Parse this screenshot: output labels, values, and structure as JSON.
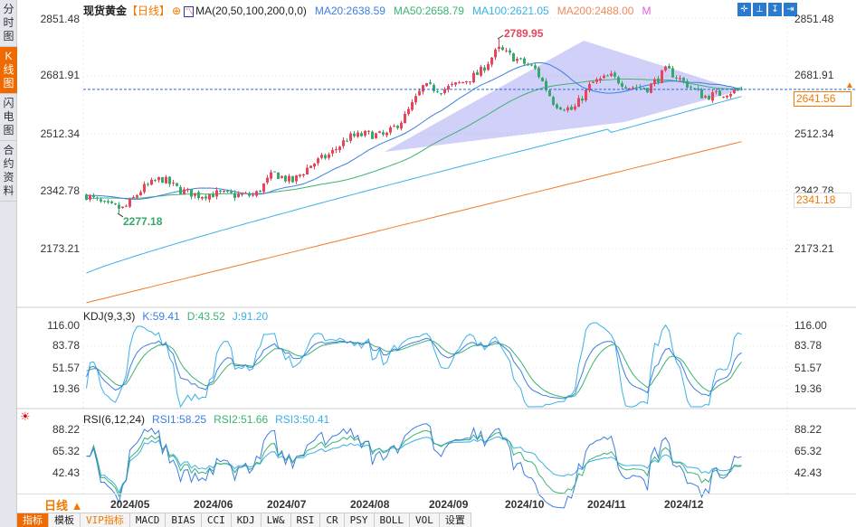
{
  "sidebar": {
    "items": [
      {
        "label": "分时图",
        "active": false
      },
      {
        "label": "K线图",
        "active": true
      },
      {
        "label": "闪电图",
        "active": false
      },
      {
        "label": "合约资料",
        "active": false
      }
    ]
  },
  "header": {
    "symbol": "现货黄金",
    "period": "【日线】",
    "ma_label": "MA(20,50,100,200,0,0)",
    "ma20": "MA20:2638.59",
    "ma50": "MA50:2658.79",
    "ma100": "MA100:2621.05",
    "ma200": "MA200:2488.00",
    "more": "M",
    "tools": [
      "crosshair-icon",
      "range-icon",
      "zoom-icon",
      "exit-icon"
    ]
  },
  "colors": {
    "up": "#e8455a",
    "down": "#35a86a",
    "ma20": "#3d7fe0",
    "ma50": "#3cb371",
    "ma100": "#3bb1e6",
    "ma200": "#f07a2a",
    "accent": "#f06a00"
  },
  "price_axis": {
    "ticks": [
      "2851.48",
      "2681.91",
      "2512.34",
      "2342.78",
      "2173.21"
    ],
    "current": "2641.56",
    "low_marker": "2341.18",
    "max_label": "2789.95",
    "min_label": "2277.18"
  },
  "kdj": {
    "title": "KDJ(9,3,3)",
    "k": "K:59.41",
    "d": "D:43.52",
    "j": "J:91.20",
    "ticks": [
      "116.00",
      "83.78",
      "51.57",
      "19.36"
    ]
  },
  "rsi": {
    "title": "RSI(6,12,24)",
    "r1": "RSI1:58.25",
    "r2": "RSI2:51.66",
    "r3": "RSI3:50.41",
    "ticks": [
      "88.22",
      "65.32",
      "42.43"
    ]
  },
  "period_button": "日线 ▲",
  "dates": [
    "2024/05",
    "2024/06",
    "2024/07",
    "2024/08",
    "2024/09",
    "2024/10",
    "2024/11",
    "2024/12"
  ],
  "tabs": [
    "指标",
    "模板",
    "VIP指标",
    "MACD",
    "BIAS",
    "CCI",
    "KDJ",
    "LW&",
    "RSI",
    "CR",
    "PSY",
    "BOLL",
    "VOL",
    "设置"
  ],
  "chart_data": {
    "type": "candlestick",
    "title": "现货黄金 日线",
    "ylim": [
      2173.21,
      2851.48
    ],
    "anchor_closes": [
      2330,
      2300,
      2290,
      2350,
      2380,
      2345,
      2330,
      2335,
      2330,
      2330,
      2395,
      2370,
      2420,
      2450,
      2500,
      2510,
      2505,
      2560,
      2650,
      2640,
      2660,
      2690,
      2760,
      2730,
      2700,
      2600,
      2580,
      2660,
      2680,
      2650,
      2645,
      2700,
      2660,
      2620,
      2630,
      2641.56
    ],
    "high": 2789.95,
    "low": 2277.18
  }
}
